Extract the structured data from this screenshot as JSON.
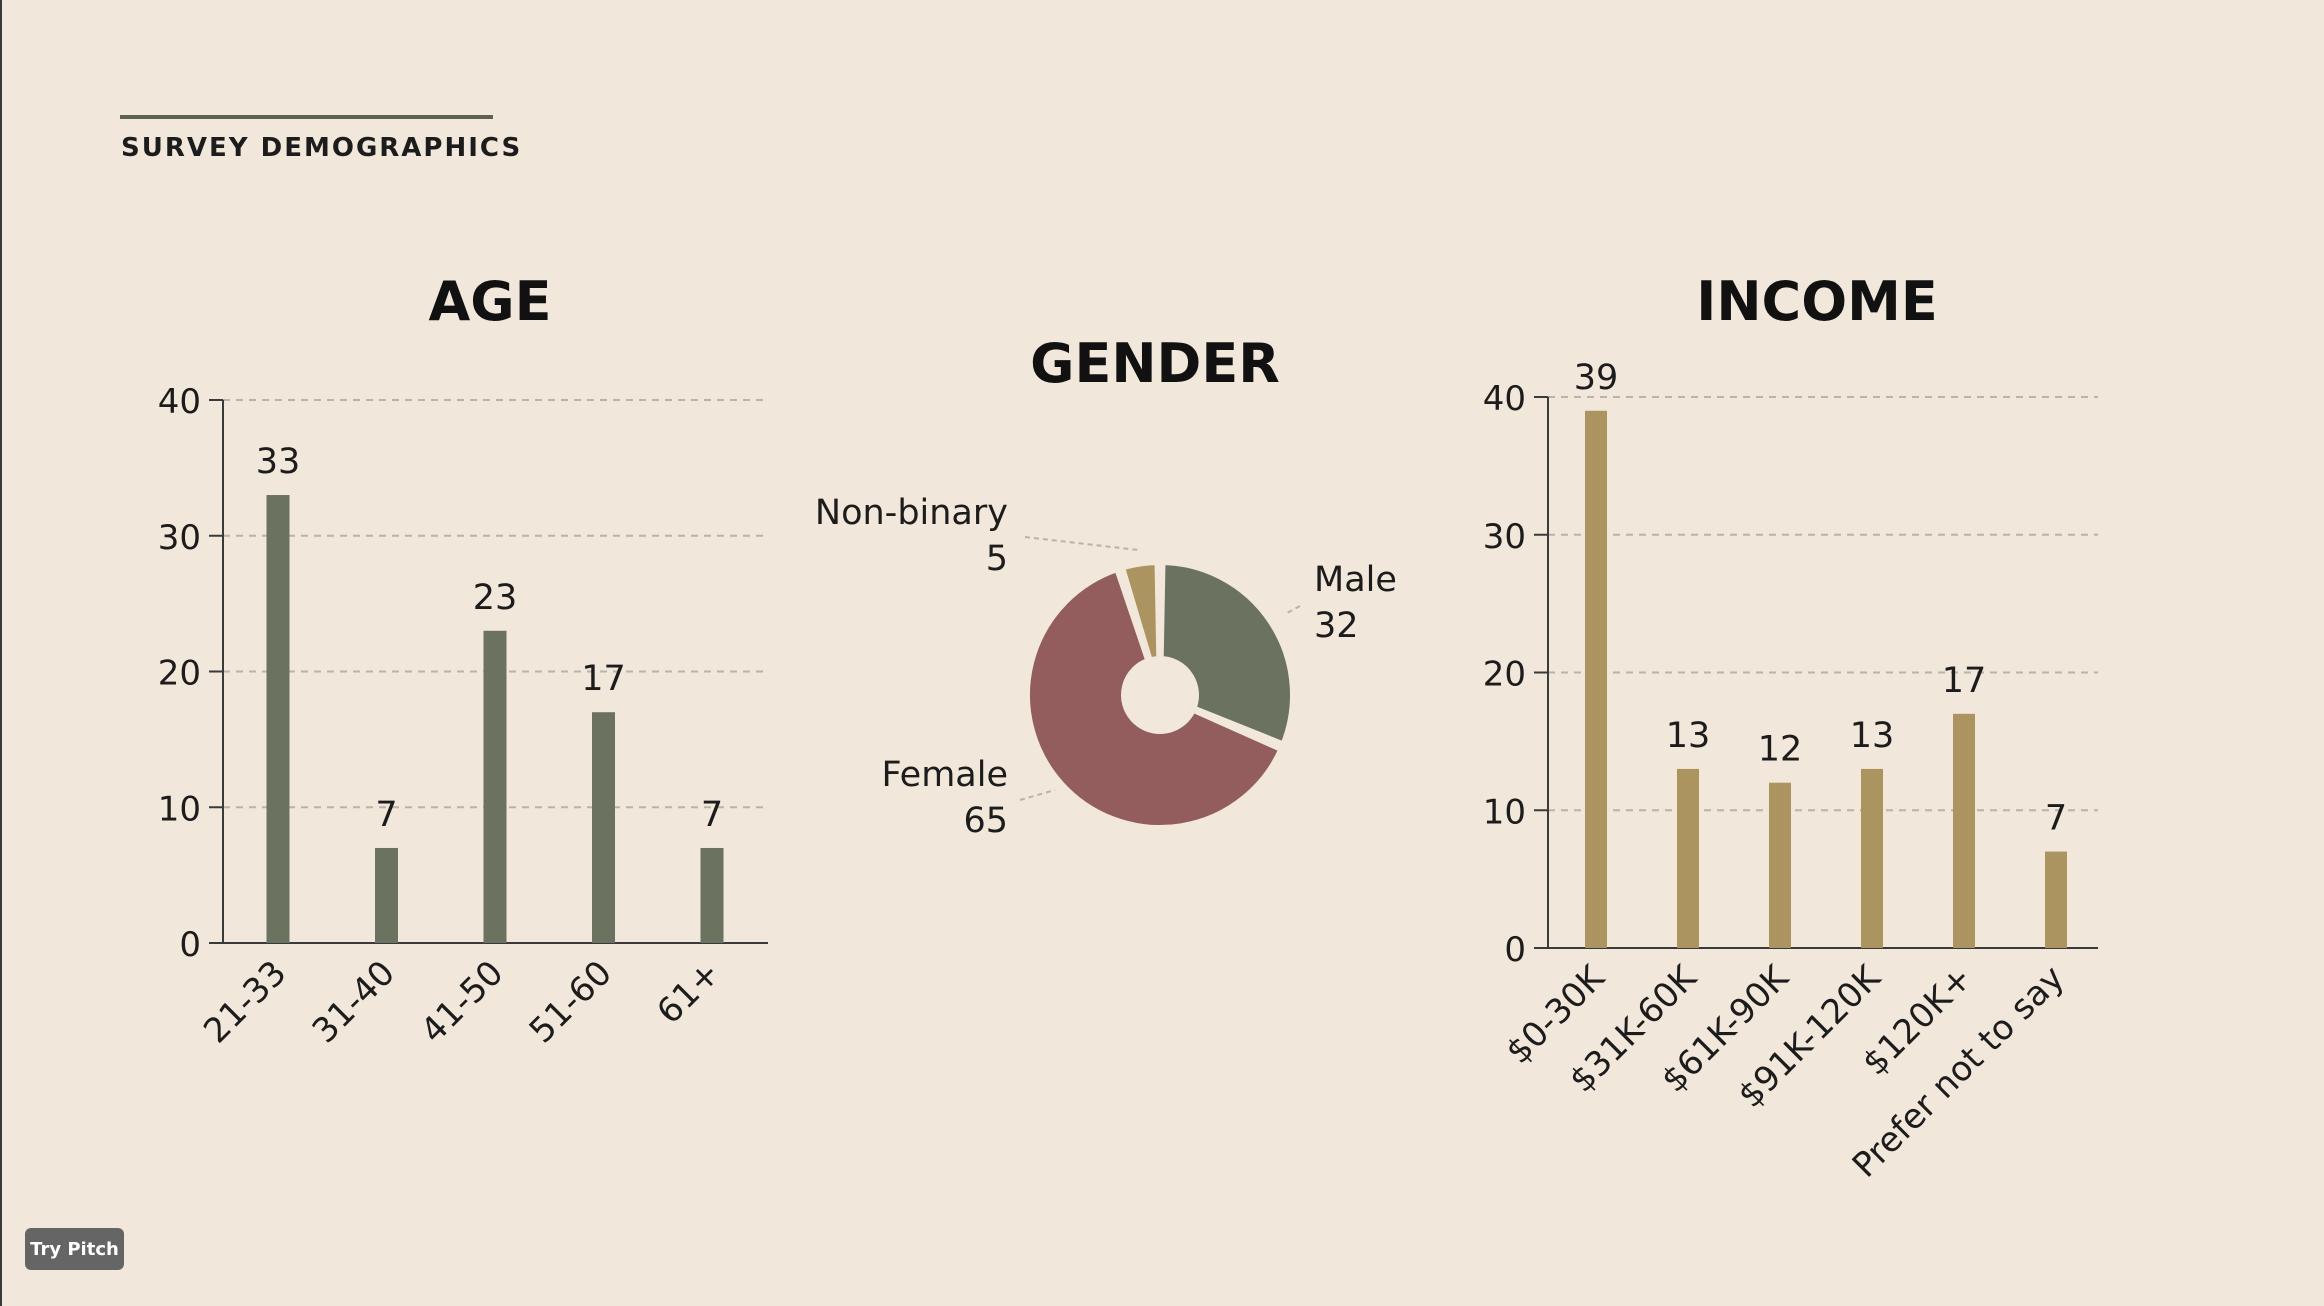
{
  "header": {
    "title": "SURVEY DEMOGRAPHICS"
  },
  "footer": {
    "button_label": "Try Pitch"
  },
  "colors": {
    "age": "#6b7360",
    "female": "#935d5d",
    "male": "#6b7360",
    "nonbinary": "#ac9461",
    "income": "#ac9461",
    "background": "#f1e7da"
  },
  "chart_data": [
    {
      "type": "bar",
      "title": "AGE",
      "categories": [
        "21-33",
        "31-40",
        "41-50",
        "51-60",
        "61+"
      ],
      "values": [
        33,
        7,
        23,
        17,
        7
      ],
      "value_labels": [
        "33",
        "7",
        "23",
        "17",
        "7"
      ],
      "yticks": [
        "0",
        "10",
        "20",
        "30",
        "40"
      ],
      "ylim": [
        0,
        40
      ],
      "grid": true,
      "color": "#6b7360"
    },
    {
      "type": "pie",
      "title": "GENDER",
      "slices": [
        {
          "label": "Male",
          "value": 32,
          "value_label": "32",
          "color": "#6b7360"
        },
        {
          "label": "Female",
          "value": 65,
          "value_label": "65",
          "color": "#935d5d"
        },
        {
          "label": "Non-binary",
          "value": 5,
          "value_label": "5",
          "color": "#ac9461"
        }
      ]
    },
    {
      "type": "bar",
      "title": "INCOME",
      "categories": [
        "$0-30K",
        "$31K-60K",
        "$61K-90K",
        "$91K-120K",
        "$120K+",
        "Prefer not to say"
      ],
      "values": [
        39,
        13,
        12,
        13,
        17,
        7
      ],
      "value_labels": [
        "39",
        "13",
        "12",
        "13",
        "17",
        "7"
      ],
      "yticks": [
        "0",
        "10",
        "20",
        "30",
        "40"
      ],
      "ylim": [
        0,
        40
      ],
      "grid": true,
      "color": "#ac9461"
    }
  ]
}
